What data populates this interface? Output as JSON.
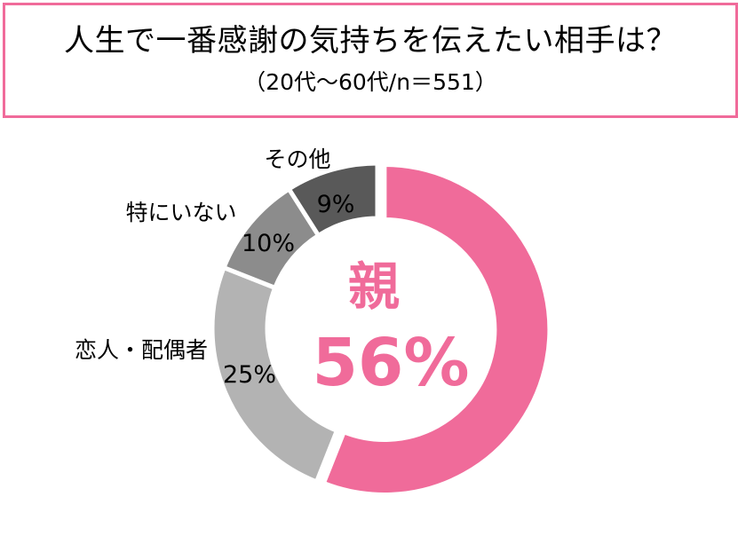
{
  "header": {
    "title": "人生で一番感謝の気持ちを伝えたい相手は？",
    "subtitle": "（20代～60代/n＝551）"
  },
  "chart_data": {
    "type": "pie",
    "variant": "donut",
    "slices": [
      {
        "label": "親",
        "value": 56,
        "value_label": "56%",
        "color": "#f06b9a"
      },
      {
        "label": "恋人・配偶者",
        "value": 25,
        "value_label": "25%",
        "color": "#b3b3b3"
      },
      {
        "label": "特にいない",
        "value": 10,
        "value_label": "10%",
        "color": "#8c8c8c"
      },
      {
        "label": "その他",
        "value": 9,
        "value_label": "9%",
        "color": "#595959"
      }
    ],
    "center": {
      "label": "親",
      "value_label": "56%"
    }
  }
}
